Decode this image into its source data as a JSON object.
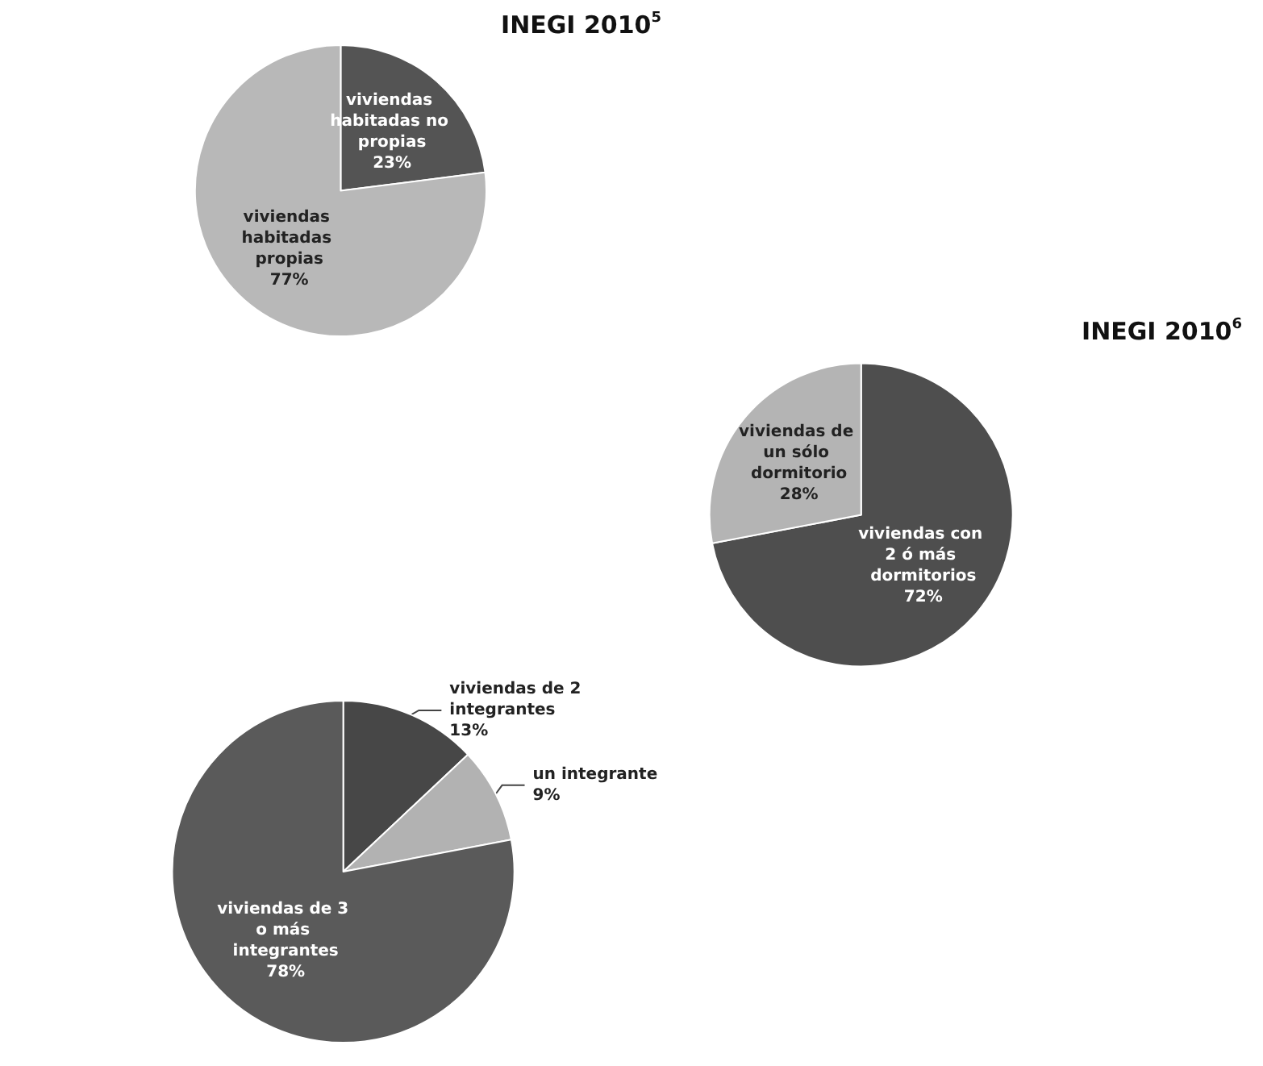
{
  "chart_data": [
    {
      "type": "pie",
      "title": "INEGI 2010$^{5}$",
      "categories": [
        "viviendas habitadas no propias",
        "viviendas habitadas propias"
      ],
      "values": [
        23,
        77
      ],
      "value_labels": [
        "23%",
        "77%"
      ],
      "colors": [
        "#545454",
        "#b8b8b8"
      ]
    },
    {
      "type": "pie",
      "title": "INEGI 2010$^{6}$",
      "categories": [
        "viviendas con 2 ó más dormitorios",
        "viviendas de un sólo dormitorio"
      ],
      "values": [
        72,
        28
      ],
      "value_labels": [
        "72%",
        "28%"
      ],
      "colors": [
        "#4e4e4e",
        "#b4b4b4"
      ]
    },
    {
      "type": "pie",
      "categories": [
        "viviendas de 2 integrantes",
        "un integrante",
        "viviendas de 3 o más integrantes"
      ],
      "values": [
        13,
        9,
        78
      ],
      "value_labels": [
        "13%",
        "9%",
        "78%"
      ],
      "colors": [
        "#474747",
        "#b2b2b2",
        "#5a5a5a"
      ]
    }
  ]
}
